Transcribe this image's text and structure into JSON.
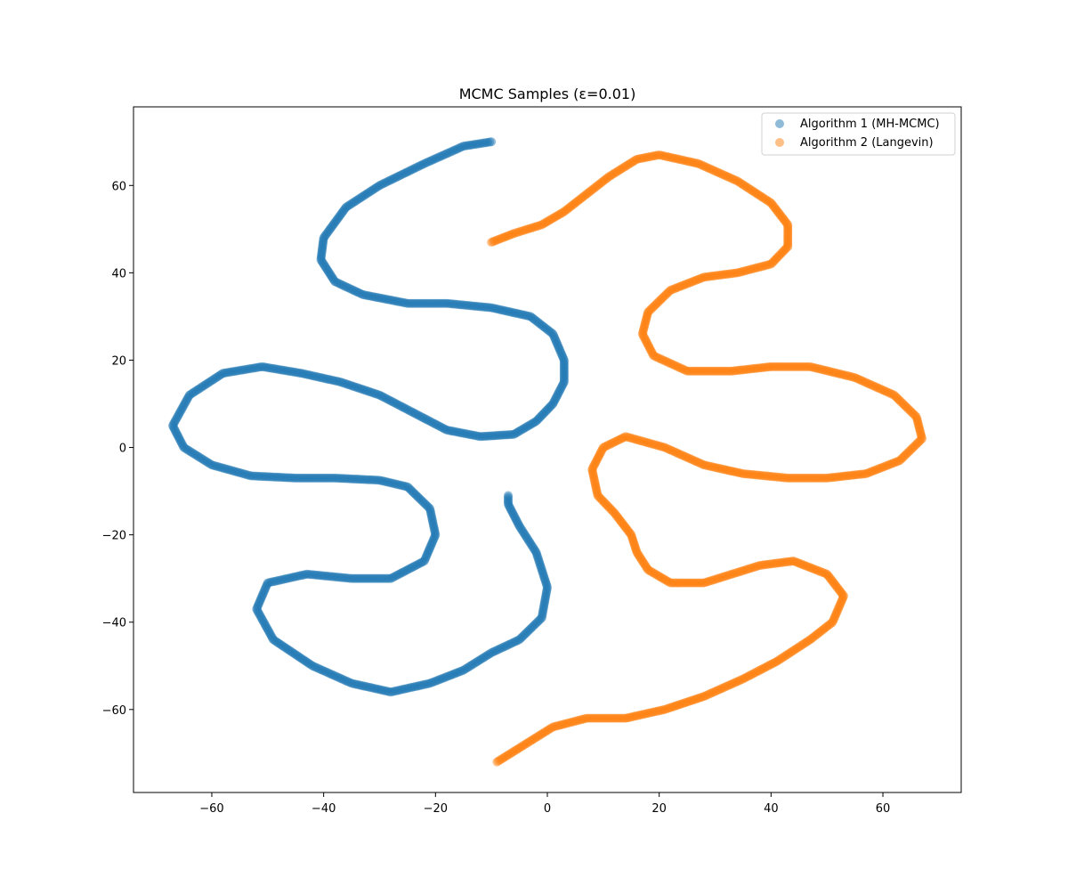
{
  "chart_data": {
    "type": "scatter",
    "title": "MCMC Samples (ε=0.01)",
    "xlabel": "",
    "ylabel": "",
    "xlim": [
      -74,
      74
    ],
    "ylim": [
      -79,
      78
    ],
    "x_ticks": [
      -60,
      -40,
      -20,
      0,
      20,
      40,
      60
    ],
    "y_ticks": [
      -60,
      -40,
      -20,
      0,
      20,
      40,
      60
    ],
    "x_tick_labels": [
      "−60",
      "−40",
      "−20",
      "0",
      "20",
      "40",
      "60"
    ],
    "y_tick_labels": [
      "−60",
      "−40",
      "−20",
      "0",
      "20",
      "40",
      "60"
    ],
    "grid": false,
    "legend_position": "top-right",
    "series": [
      {
        "name": "Algorithm 1 (MH-MCMC)",
        "color": "#1f77b4",
        "alpha": 0.5,
        "points": [
          [
            -10,
            70
          ],
          [
            -15,
            69
          ],
          [
            -22,
            65
          ],
          [
            -30,
            60
          ],
          [
            -36,
            55
          ],
          [
            -40,
            48
          ],
          [
            -40.5,
            43
          ],
          [
            -38,
            38
          ],
          [
            -33,
            35
          ],
          [
            -25,
            33
          ],
          [
            -18,
            33
          ],
          [
            -10,
            32
          ],
          [
            -3,
            30
          ],
          [
            1,
            26
          ],
          [
            3,
            20
          ],
          [
            3,
            15
          ],
          [
            1,
            10
          ],
          [
            -2,
            6
          ],
          [
            -6,
            3
          ],
          [
            -12,
            2.5
          ],
          [
            -18,
            4
          ],
          [
            -24,
            8
          ],
          [
            -30,
            12
          ],
          [
            -37,
            15
          ],
          [
            -44,
            17
          ],
          [
            -51,
            18.5
          ],
          [
            -58,
            17
          ],
          [
            -64,
            12
          ],
          [
            -67,
            5
          ],
          [
            -65,
            0
          ],
          [
            -60,
            -4
          ],
          [
            -53,
            -6.5
          ],
          [
            -45,
            -7
          ],
          [
            -38,
            -7
          ],
          [
            -30,
            -7.5
          ],
          [
            -25,
            -9
          ],
          [
            -21,
            -14
          ],
          [
            -20,
            -20
          ],
          [
            -22,
            -26
          ],
          [
            -28,
            -30
          ],
          [
            -35,
            -30
          ],
          [
            -43,
            -29
          ],
          [
            -50,
            -31
          ],
          [
            -52,
            -37
          ],
          [
            -49,
            -44
          ],
          [
            -42,
            -50
          ],
          [
            -35,
            -54
          ],
          [
            -28,
            -56
          ],
          [
            -21,
            -54
          ],
          [
            -15,
            -51
          ],
          [
            -10,
            -47
          ],
          [
            -5,
            -44
          ],
          [
            -1,
            -39
          ],
          [
            0,
            -32
          ],
          [
            -2,
            -24
          ],
          [
            -5,
            -18
          ],
          [
            -7,
            -13
          ],
          [
            -7,
            -11
          ]
        ]
      },
      {
        "name": "Algorithm 2 (Langevin)",
        "color": "#ff7f0e",
        "alpha": 0.5,
        "points": [
          [
            -10,
            47
          ],
          [
            -6,
            49
          ],
          [
            -1,
            51
          ],
          [
            3,
            54
          ],
          [
            7,
            58
          ],
          [
            11,
            62
          ],
          [
            16,
            66
          ],
          [
            20,
            67
          ],
          [
            27,
            65
          ],
          [
            34,
            61
          ],
          [
            40,
            56
          ],
          [
            43,
            51
          ],
          [
            43,
            46
          ],
          [
            40,
            42
          ],
          [
            34,
            40
          ],
          [
            28,
            39
          ],
          [
            22,
            36
          ],
          [
            18,
            31
          ],
          [
            17,
            26
          ],
          [
            19,
            21
          ],
          [
            25,
            17.5
          ],
          [
            33,
            17.5
          ],
          [
            40,
            18.5
          ],
          [
            47,
            18.5
          ],
          [
            55,
            16
          ],
          [
            62,
            12
          ],
          [
            66,
            7
          ],
          [
            67,
            2
          ],
          [
            63,
            -3
          ],
          [
            57,
            -6
          ],
          [
            50,
            -7
          ],
          [
            43,
            -7
          ],
          [
            35,
            -6
          ],
          [
            28,
            -4
          ],
          [
            21,
            0
          ],
          [
            14,
            2.5
          ],
          [
            10,
            0
          ],
          [
            8,
            -5
          ],
          [
            9,
            -11
          ],
          [
            12,
            -15
          ],
          [
            15,
            -20
          ],
          [
            16,
            -24
          ],
          [
            18,
            -28
          ],
          [
            22,
            -31
          ],
          [
            28,
            -31
          ],
          [
            33,
            -29
          ],
          [
            38,
            -27
          ],
          [
            44,
            -26
          ],
          [
            50,
            -29
          ],
          [
            53,
            -34
          ],
          [
            51,
            -40
          ],
          [
            47,
            -44
          ],
          [
            41,
            -49
          ],
          [
            35,
            -53
          ],
          [
            28,
            -57
          ],
          [
            21,
            -60
          ],
          [
            14,
            -62
          ],
          [
            7,
            -62
          ],
          [
            1,
            -64
          ],
          [
            -4,
            -68
          ],
          [
            -9,
            -72
          ]
        ]
      }
    ]
  }
}
